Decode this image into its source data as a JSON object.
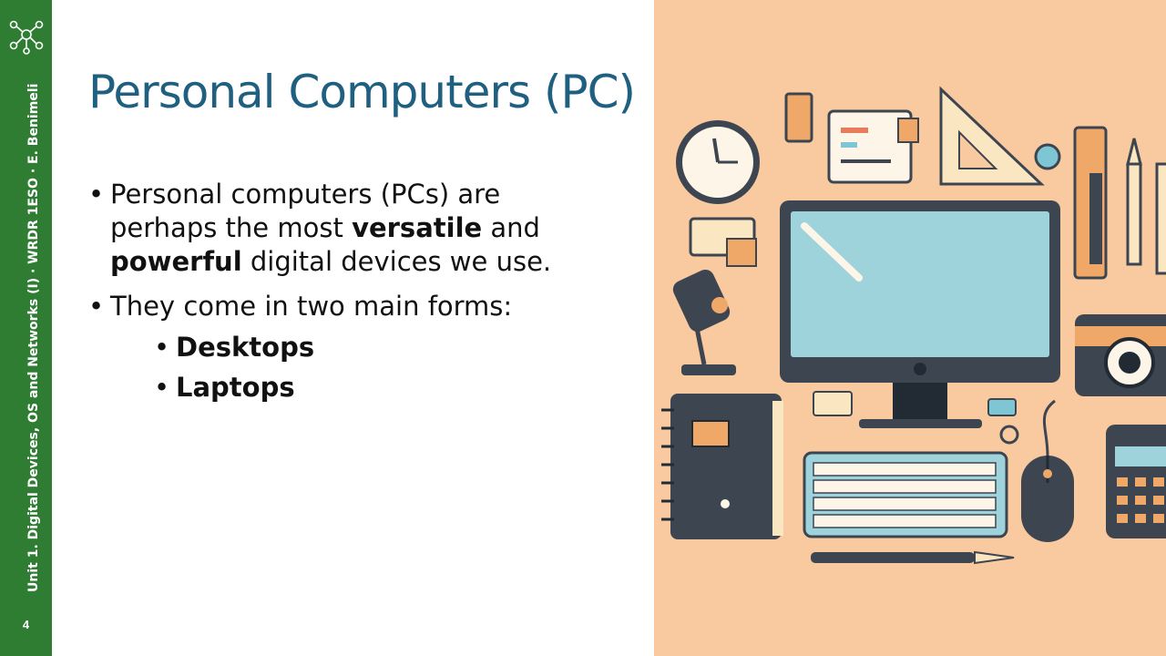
{
  "slide": {
    "title": "Personal Computers (PC)",
    "page_number": "4",
    "sidebar_text": "Unit 1. Digital Devices, OS and Networks (I) · WRDR 1ESO · E. Benimeli",
    "bullets": [
      {
        "parts": [
          "Personal computers (PCs) are perhaps the most ",
          "versatile",
          " and ",
          "powerful",
          " digital devices we use."
        ]
      },
      {
        "text": "They come in two main forms:",
        "sub": [
          "Desktops",
          "Laptops"
        ]
      }
    ]
  },
  "colors": {
    "sidebar": "#2e7d32",
    "title": "#1f5f7f",
    "illustration_bg": "#f9c9a0"
  }
}
